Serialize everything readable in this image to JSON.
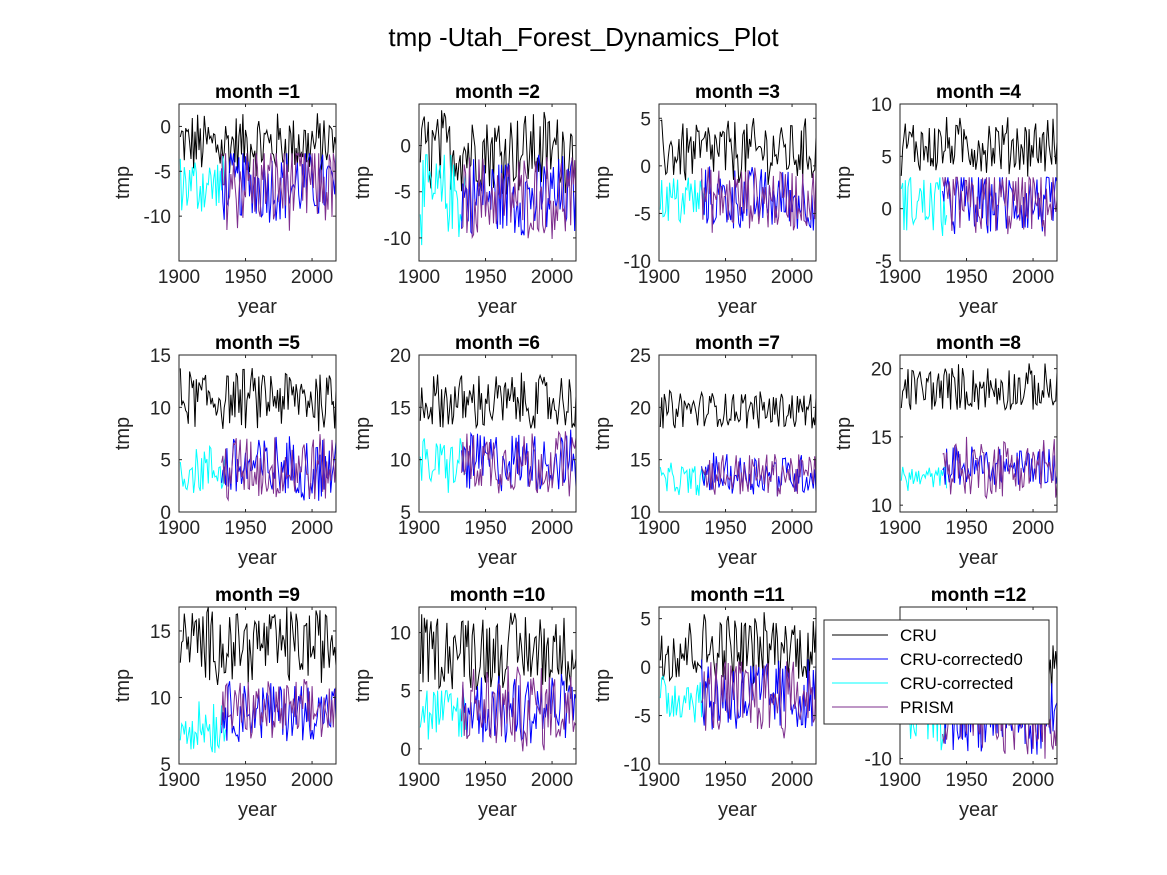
{
  "figure": {
    "suptitle": "tmp -Utah_Forest_Dynamics_Plot"
  },
  "colors": {
    "CRU": "#000000",
    "CRU-corrected0": "#0000ff",
    "CRU-corrected": "#00ffff",
    "PRISM": "#7e2f8e"
  },
  "legend": {
    "placement": "overlapping month 12 panel, upper left",
    "entries": [
      "CRU",
      "CRU-corrected0",
      "CRU-corrected",
      "PRISM"
    ]
  },
  "chart_data": [
    {
      "type": "line",
      "title": "month =1",
      "xlabel": "year",
      "ylabel": "tmp",
      "xlim": [
        1900,
        2018
      ],
      "ylim": [
        -15,
        2.5
      ],
      "xticks": [
        "1900",
        "1950",
        "2000"
      ],
      "yticks": [
        "0",
        "-5",
        "-10"
      ],
      "series": [
        {
          "name": "CRU",
          "range": [
            -6,
            2
          ],
          "mean": -2
        },
        {
          "name": "CRU-corrected",
          "range": [
            -10.5,
            -3
          ],
          "mean": -6.5,
          "x": [
            1901,
            1935
          ]
        },
        {
          "name": "CRU-corrected0",
          "range": [
            -12,
            -3
          ],
          "mean": -6.5,
          "x": [
            1932,
            2018
          ]
        },
        {
          "name": "PRISM",
          "range": [
            -14.5,
            -3
          ],
          "mean": -6.5,
          "x": [
            1932,
            2018
          ]
        }
      ]
    },
    {
      "type": "line",
      "title": "month =2",
      "xlabel": "year",
      "ylabel": "tmp",
      "xlim": [
        1900,
        2018
      ],
      "ylim": [
        -12.5,
        4.5
      ],
      "xticks": [
        "1900",
        "1950",
        "2000"
      ],
      "yticks": [
        "0",
        "-5",
        "-10"
      ],
      "series": [
        {
          "name": "CRU",
          "range": [
            -6,
            4
          ],
          "mean": -0.5
        },
        {
          "name": "CRU-corrected",
          "range": [
            -12,
            -1
          ],
          "mean": -5.5,
          "x": [
            1901,
            1935
          ]
        },
        {
          "name": "CRU-corrected0",
          "range": [
            -11,
            -1
          ],
          "mean": -5.5,
          "x": [
            1932,
            2018
          ]
        },
        {
          "name": "PRISM",
          "range": [
            -11,
            -1
          ],
          "mean": -5.5,
          "x": [
            1932,
            2018
          ]
        }
      ]
    },
    {
      "type": "line",
      "title": "month =3",
      "xlabel": "year",
      "ylabel": "tmp",
      "xlim": [
        1900,
        2018
      ],
      "ylim": [
        -10,
        6.5
      ],
      "xticks": [
        "1900",
        "1950",
        "2000"
      ],
      "yticks": [
        "5",
        "0",
        "-5",
        "-10"
      ],
      "series": [
        {
          "name": "CRU",
          "range": [
            -2,
            5.5
          ],
          "mean": 1.5
        },
        {
          "name": "CRU-corrected",
          "range": [
            -7.5,
            -1
          ],
          "mean": -3.5,
          "x": [
            1901,
            1935
          ]
        },
        {
          "name": "CRU-corrected0",
          "range": [
            -7.5,
            0
          ],
          "mean": -3.5,
          "x": [
            1932,
            2018
          ]
        },
        {
          "name": "PRISM",
          "range": [
            -7.5,
            0
          ],
          "mean": -3.5,
          "x": [
            1932,
            2018
          ]
        }
      ]
    },
    {
      "type": "line",
      "title": "month =4",
      "xlabel": "year",
      "ylabel": "tmp",
      "xlim": [
        1900,
        2018
      ],
      "ylim": [
        -5,
        10
      ],
      "xticks": [
        "1900",
        "1950",
        "2000"
      ],
      "yticks": [
        "10",
        "5",
        "0",
        "-5"
      ],
      "series": [
        {
          "name": "CRU",
          "range": [
            3,
            9
          ],
          "mean": 6
        },
        {
          "name": "CRU-corrected",
          "range": [
            -4,
            3
          ],
          "mean": 0.5,
          "x": [
            1901,
            1935
          ]
        },
        {
          "name": "CRU-corrected0",
          "range": [
            -4,
            3
          ],
          "mean": 0.5,
          "x": [
            1932,
            2018
          ]
        },
        {
          "name": "PRISM",
          "range": [
            -4.5,
            3
          ],
          "mean": 0.5,
          "x": [
            1932,
            2018
          ]
        }
      ]
    },
    {
      "type": "line",
      "title": "month =5",
      "xlabel": "year",
      "ylabel": "tmp",
      "xlim": [
        1900,
        2018
      ],
      "ylim": [
        0,
        15
      ],
      "xticks": [
        "1900",
        "1950",
        "2000"
      ],
      "yticks": [
        "15",
        "10",
        "5",
        "0"
      ],
      "series": [
        {
          "name": "CRU",
          "range": [
            7.5,
            14
          ],
          "mean": 10.8
        },
        {
          "name": "CRU-corrected",
          "range": [
            1,
            6.5
          ],
          "mean": 4,
          "x": [
            1901,
            1935
          ]
        },
        {
          "name": "CRU-corrected0",
          "range": [
            1,
            8
          ],
          "mean": 4.2,
          "x": [
            1932,
            2018
          ]
        },
        {
          "name": "PRISM",
          "range": [
            0.5,
            8
          ],
          "mean": 4.2,
          "x": [
            1932,
            2018
          ]
        }
      ]
    },
    {
      "type": "line",
      "title": "month =6",
      "xlabel": "year",
      "ylabel": "tmp",
      "xlim": [
        1900,
        2018
      ],
      "ylim": [
        5,
        20
      ],
      "xticks": [
        "1900",
        "1950",
        "2000"
      ],
      "yticks": [
        "20",
        "15",
        "10",
        "5"
      ],
      "series": [
        {
          "name": "CRU",
          "range": [
            13,
            19
          ],
          "mean": 15.5
        },
        {
          "name": "CRU-corrected",
          "range": [
            6.5,
            12.5
          ],
          "mean": 9.5,
          "x": [
            1901,
            1935
          ]
        },
        {
          "name": "CRU-corrected0",
          "range": [
            6.5,
            13
          ],
          "mean": 9.8,
          "x": [
            1932,
            2018
          ]
        },
        {
          "name": "PRISM",
          "range": [
            6,
            13
          ],
          "mean": 9.8,
          "x": [
            1932,
            2018
          ]
        }
      ]
    },
    {
      "type": "line",
      "title": "month =7",
      "xlabel": "year",
      "ylabel": "tmp",
      "xlim": [
        1900,
        2018
      ],
      "ylim": [
        10,
        25
      ],
      "xticks": [
        "1900",
        "1950",
        "2000"
      ],
      "yticks": [
        "25",
        "20",
        "15",
        "10"
      ],
      "series": [
        {
          "name": "CRU",
          "range": [
            18,
            22
          ],
          "mean": 19.8
        },
        {
          "name": "CRU-corrected",
          "range": [
            11.5,
            15
          ],
          "mean": 13,
          "x": [
            1901,
            1935
          ]
        },
        {
          "name": "CRU-corrected0",
          "range": [
            11.5,
            16
          ],
          "mean": 13.6,
          "x": [
            1932,
            2018
          ]
        },
        {
          "name": "PRISM",
          "range": [
            11.5,
            16
          ],
          "mean": 13.6,
          "x": [
            1932,
            2018
          ]
        }
      ]
    },
    {
      "type": "line",
      "title": "month =8",
      "xlabel": "year",
      "ylabel": "tmp",
      "xlim": [
        1900,
        2018
      ],
      "ylim": [
        9.5,
        21
      ],
      "xticks": [
        "1900",
        "1950",
        "2000"
      ],
      "yticks": [
        "20",
        "15",
        "10"
      ],
      "series": [
        {
          "name": "CRU",
          "range": [
            17,
            21
          ],
          "mean": 18.5
        },
        {
          "name": "CRU-corrected",
          "range": [
            11,
            13
          ],
          "mean": 12,
          "x": [
            1901,
            1935
          ]
        },
        {
          "name": "CRU-corrected0",
          "range": [
            11.5,
            15
          ],
          "mean": 12.8,
          "x": [
            1932,
            2018
          ]
        },
        {
          "name": "PRISM",
          "range": [
            10,
            15
          ],
          "mean": 12.8,
          "x": [
            1932,
            2018
          ]
        }
      ]
    },
    {
      "type": "line",
      "title": "month =9",
      "xlabel": "year",
      "ylabel": "tmp",
      "xlim": [
        1900,
        2018
      ],
      "ylim": [
        5,
        16.8
      ],
      "xticks": [
        "1900",
        "1950",
        "2000"
      ],
      "yticks": [
        "15",
        "10",
        "5"
      ],
      "series": [
        {
          "name": "CRU",
          "range": [
            10.5,
            16.8
          ],
          "mean": 14
        },
        {
          "name": "CRU-corrected",
          "range": [
            5,
            10
          ],
          "mean": 8,
          "x": [
            1901,
            1935
          ]
        },
        {
          "name": "CRU-corrected0",
          "range": [
            6.5,
            11.5
          ],
          "mean": 9,
          "x": [
            1932,
            2018
          ]
        },
        {
          "name": "PRISM",
          "range": [
            6.5,
            11.5
          ],
          "mean": 9,
          "x": [
            1932,
            2018
          ]
        }
      ]
    },
    {
      "type": "line",
      "title": "month =10",
      "xlabel": "year",
      "ylabel": "tmp",
      "xlim": [
        1900,
        2018
      ],
      "ylim": [
        -1.3,
        12.2
      ],
      "xticks": [
        "1900",
        "1950",
        "2000"
      ],
      "yticks": [
        "10",
        "5",
        "0"
      ],
      "series": [
        {
          "name": "CRU",
          "range": [
            4.5,
            12
          ],
          "mean": 8.5
        },
        {
          "name": "CRU-corrected",
          "range": [
            -1,
            5
          ],
          "mean": 3,
          "x": [
            1901,
            1935
          ]
        },
        {
          "name": "CRU-corrected0",
          "range": [
            -0.5,
            7
          ],
          "mean": 3.5,
          "x": [
            1932,
            2018
          ]
        },
        {
          "name": "PRISM",
          "range": [
            -0.5,
            7.5
          ],
          "mean": 3.5,
          "x": [
            1932,
            2018
          ]
        }
      ]
    },
    {
      "type": "line",
      "title": "month =11",
      "xlabel": "year",
      "ylabel": "tmp",
      "xlim": [
        1900,
        2018
      ],
      "ylim": [
        -10,
        6.2
      ],
      "xticks": [
        "1900",
        "1950",
        "2000"
      ],
      "yticks": [
        "5",
        "0",
        "-5",
        "-10"
      ],
      "series": [
        {
          "name": "CRU",
          "range": [
            -2,
            6
          ],
          "mean": 2
        },
        {
          "name": "CRU-corrected",
          "range": [
            -6,
            0
          ],
          "mean": -3,
          "x": [
            1901,
            1935
          ]
        },
        {
          "name": "CRU-corrected0",
          "range": [
            -8,
            1
          ],
          "mean": -3,
          "x": [
            1932,
            2018
          ]
        },
        {
          "name": "PRISM",
          "range": [
            -8,
            1
          ],
          "mean": -3,
          "x": [
            1932,
            2018
          ]
        }
      ]
    },
    {
      "type": "line",
      "title": "month =12",
      "xlabel": "year",
      "ylabel": "tmp",
      "xlim": [
        1900,
        2018
      ],
      "ylim": [
        -10.5,
        4
      ],
      "xticks": [
        "1900",
        "1950",
        "2000"
      ],
      "yticks": [
        "-10"
      ],
      "series": [
        {
          "name": "CRU",
          "range": [
            -5,
            3
          ],
          "mean": -1
        },
        {
          "name": "CRU-corrected",
          "range": [
            -10,
            -3
          ],
          "mean": -6,
          "x": [
            1901,
            1935
          ]
        },
        {
          "name": "CRU-corrected0",
          "range": [
            -10,
            -2
          ],
          "mean": -6,
          "x": [
            1932,
            2018
          ]
        },
        {
          "name": "PRISM",
          "range": [
            -10.5,
            -2
          ],
          "mean": -6,
          "x": [
            1932,
            2018
          ]
        }
      ]
    }
  ]
}
